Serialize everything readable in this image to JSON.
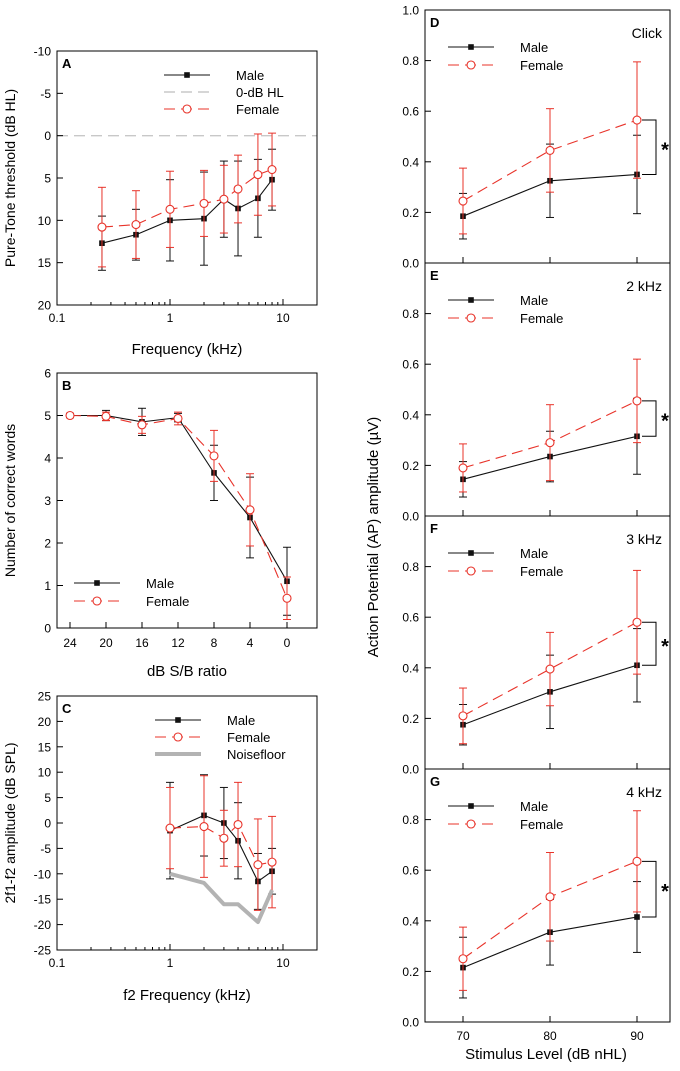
{
  "chart_data": [
    {
      "id": "A",
      "type": "line",
      "panel_label": "A",
      "xlabel": "Frequency (kHz)",
      "ylabel": "Pure-Tone threshold (dB HL)",
      "xscale": "log",
      "xlim": [
        0.1,
        20
      ],
      "ylim": [
        20,
        -10
      ],
      "y_inverted": true,
      "xticks": [
        0.1,
        1,
        10
      ],
      "xtick_labels": [
        "0.1",
        "1",
        "10"
      ],
      "yticks": [
        -10,
        -5,
        0,
        5,
        10,
        15,
        20
      ],
      "ytick_labels": [
        "-10",
        "-5",
        "0",
        "5",
        "10",
        "15",
        "20"
      ],
      "legend": [
        "Male",
        "0-dB HL",
        "Female"
      ],
      "legend_position": "top-right",
      "reference_line": {
        "name": "0-dB HL",
        "y": 0
      },
      "series": [
        {
          "name": "Male",
          "x": [
            0.25,
            0.5,
            1,
            2,
            3,
            4,
            6,
            8
          ],
          "y": [
            12.7,
            11.7,
            10.0,
            9.8,
            7.5,
            8.6,
            7.4,
            5.2
          ],
          "err": [
            3.2,
            3.0,
            4.8,
            5.5,
            4.5,
            5.6,
            4.6,
            3.6
          ]
        },
        {
          "name": "Female",
          "x": [
            0.25,
            0.5,
            1,
            2,
            3,
            4,
            6,
            8
          ],
          "y": [
            10.8,
            10.5,
            8.7,
            8.0,
            7.5,
            6.3,
            4.6,
            4.0
          ],
          "err": [
            4.7,
            4.0,
            4.5,
            3.9,
            4.0,
            4.0,
            4.8,
            4.3
          ]
        }
      ]
    },
    {
      "id": "B",
      "type": "line",
      "panel_label": "B",
      "xlabel": "dB S/B ratio",
      "ylabel": "Number of correct words",
      "x_categories": [
        "24",
        "20",
        "16",
        "12",
        "8",
        "4",
        "0"
      ],
      "ylim": [
        0,
        6
      ],
      "yticks": [
        0,
        1,
        2,
        3,
        4,
        5,
        6
      ],
      "ytick_labels": [
        "0",
        "1",
        "2",
        "3",
        "4",
        "5",
        "6"
      ],
      "legend": [
        "Male",
        "Female"
      ],
      "legend_position": "bottom-left",
      "series": [
        {
          "name": "Male",
          "y": [
            5.0,
            5.0,
            4.85,
            4.95,
            3.65,
            2.6,
            1.1
          ],
          "err": [
            0.05,
            0.12,
            0.32,
            0.1,
            0.65,
            0.95,
            0.8
          ]
        },
        {
          "name": "Female",
          "y": [
            5.0,
            4.98,
            4.78,
            4.93,
            4.05,
            2.78,
            0.7
          ],
          "err": [
            0.05,
            0.1,
            0.2,
            0.15,
            0.6,
            0.85,
            0.5
          ]
        }
      ]
    },
    {
      "id": "C",
      "type": "line",
      "panel_label": "C",
      "xlabel": "f2 Frequency (kHz)",
      "ylabel": "2f1-f2 amplitude (dB SPL)",
      "xscale": "log",
      "xlim": [
        0.1,
        20
      ],
      "ylim": [
        -25,
        25
      ],
      "xticks": [
        0.1,
        1,
        10
      ],
      "xtick_labels": [
        "0.1",
        "1",
        "10"
      ],
      "yticks": [
        -25,
        -20,
        -15,
        -10,
        -5,
        0,
        5,
        10,
        15,
        20,
        25
      ],
      "ytick_labels": [
        "-25",
        "-20",
        "-15",
        "-10",
        "-5",
        "0",
        "5",
        "10",
        "15",
        "20",
        "25"
      ],
      "legend": [
        "Male",
        "Female",
        "Noisefloor"
      ],
      "legend_position": "top-right",
      "series": [
        {
          "name": "Male",
          "x": [
            1,
            2,
            3,
            4,
            6,
            8
          ],
          "y": [
            -1.5,
            1.5,
            0.0,
            -3.5,
            -11.5,
            -9.5
          ],
          "err": [
            9.5,
            8.0,
            7.0,
            7.5,
            5.5,
            4.5
          ]
        },
        {
          "name": "Female",
          "x": [
            1,
            2,
            3,
            4,
            6,
            8
          ],
          "y": [
            -1.0,
            -0.7,
            -3.0,
            -0.3,
            -8.2,
            -7.7
          ],
          "err": [
            8.0,
            10.0,
            5.5,
            8.3,
            9.0,
            9.0
          ]
        },
        {
          "name": "Noisefloor",
          "x": [
            1,
            2,
            3,
            4,
            6,
            8
          ],
          "y": [
            -10.0,
            -11.8,
            -16.0,
            -16.0,
            -19.5,
            -13.2
          ]
        }
      ]
    },
    {
      "id": "D",
      "type": "line",
      "panel_label": "D",
      "title": "Click",
      "x_categories": [
        "70",
        "80",
        "90"
      ],
      "ylim": [
        0,
        1.0
      ],
      "yticks": [
        0,
        0.2,
        0.4,
        0.6,
        0.8,
        1.0
      ],
      "ytick_labels": [
        "0.0",
        "0.2",
        "0.4",
        "0.6",
        "0.8",
        "1.0"
      ],
      "legend": [
        "Male",
        "Female"
      ],
      "legend_position": "top-left",
      "significance": "*",
      "series": [
        {
          "name": "Male",
          "y": [
            0.185,
            0.325,
            0.35
          ],
          "err": [
            0.09,
            0.145,
            0.155
          ]
        },
        {
          "name": "Female",
          "y": [
            0.245,
            0.445,
            0.565
          ],
          "err": [
            0.13,
            0.165,
            0.23
          ]
        }
      ]
    },
    {
      "id": "E",
      "type": "line",
      "panel_label": "E",
      "title": "2 kHz",
      "x_categories": [
        "70",
        "80",
        "90"
      ],
      "ylim": [
        0,
        1.0
      ],
      "yticks": [
        0,
        0.2,
        0.4,
        0.6,
        0.8
      ],
      "ytick_labels": [
        "0.0",
        "0.2",
        "0.4",
        "0.6",
        "0.8"
      ],
      "legend": [
        "Male",
        "Female"
      ],
      "legend_position": "top-left",
      "significance": "*",
      "series": [
        {
          "name": "Male",
          "y": [
            0.145,
            0.235,
            0.315
          ],
          "err": [
            0.07,
            0.1,
            0.15
          ]
        },
        {
          "name": "Female",
          "y": [
            0.19,
            0.29,
            0.455
          ],
          "err": [
            0.095,
            0.15,
            0.165
          ]
        }
      ]
    },
    {
      "id": "F",
      "type": "line",
      "panel_label": "F",
      "title": "3 kHz",
      "x_categories": [
        "70",
        "80",
        "90"
      ],
      "ylim": [
        0,
        1.0
      ],
      "yticks": [
        0,
        0.2,
        0.4,
        0.6,
        0.8
      ],
      "ytick_labels": [
        "0.0",
        "0.2",
        "0.4",
        "0.6",
        "0.8"
      ],
      "legend": [
        "Male",
        "Female"
      ],
      "legend_position": "top-left",
      "significance": "*",
      "series": [
        {
          "name": "Male",
          "y": [
            0.175,
            0.305,
            0.41
          ],
          "err": [
            0.08,
            0.145,
            0.145
          ]
        },
        {
          "name": "Female",
          "y": [
            0.21,
            0.395,
            0.58
          ],
          "err": [
            0.11,
            0.145,
            0.205
          ]
        }
      ]
    },
    {
      "id": "G",
      "type": "line",
      "panel_label": "G",
      "title": "4 kHz",
      "x_categories": [
        "70",
        "80",
        "90"
      ],
      "ylim": [
        0,
        1.0
      ],
      "yticks": [
        0,
        0.2,
        0.4,
        0.6,
        0.8
      ],
      "ytick_labels": [
        "0.0",
        "0.2",
        "0.4",
        "0.6",
        "0.8"
      ],
      "legend": [
        "Male",
        "Female"
      ],
      "legend_position": "top-left",
      "significance": "*",
      "series": [
        {
          "name": "Male",
          "y": [
            0.215,
            0.355,
            0.415
          ],
          "err": [
            0.12,
            0.13,
            0.14
          ]
        },
        {
          "name": "Female",
          "y": [
            0.25,
            0.495,
            0.635
          ],
          "err": [
            0.125,
            0.175,
            0.2
          ]
        }
      ]
    }
  ],
  "right_axis": {
    "ylabel": "Action Potential (AP) amplitude (µV)",
    "xlabel": "Stimulus Level (dB nHL)"
  },
  "colors": {
    "male": "#111111",
    "female": "#e8332a",
    "reference": "#c8c8c8",
    "noisefloor": "#b3b3b3"
  }
}
